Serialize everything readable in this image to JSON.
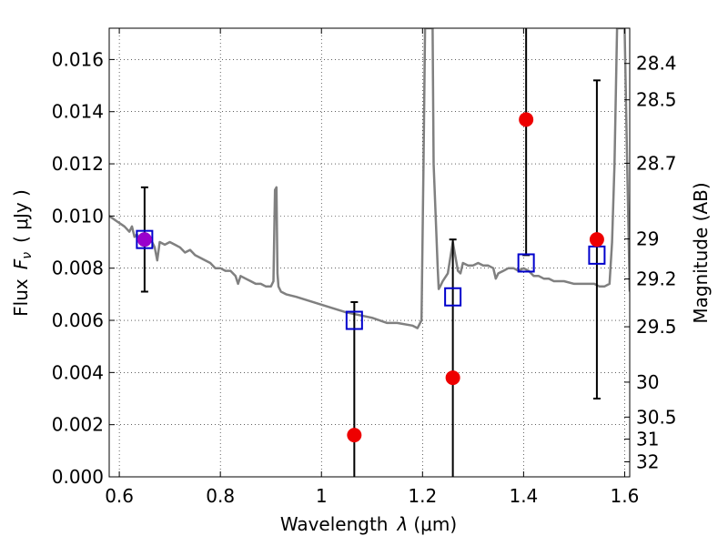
{
  "chart_data": {
    "type": "scatter",
    "title": "",
    "xlabel_text": "Wavelength",
    "xlabel_symbol": "λ",
    "xlabel_unit": "(μm)",
    "ylabel_text": "Flux",
    "ylabel_symbol": "F",
    "ylabel_subscript": "ν",
    "ylabel_unit": "( μJy )",
    "y2label": "Magnitude (AB)",
    "xlim": [
      0.58,
      1.61
    ],
    "ylim": [
      0.0,
      0.0172
    ],
    "grid": true,
    "x_ticks": [
      0.6,
      0.8,
      1.0,
      1.2,
      1.4,
      1.6
    ],
    "x_tick_labels": [
      "0.6",
      "0.8",
      "1",
      "1.2",
      "1.4",
      "1.6"
    ],
    "y_ticks": [
      0.0,
      0.002,
      0.004,
      0.006,
      0.008,
      0.01,
      0.012,
      0.014,
      0.016
    ],
    "y_tick_labels": [
      "0.000",
      "0.002",
      "0.004",
      "0.006",
      "0.008",
      "0.010",
      "0.012",
      "0.014",
      "0.016"
    ],
    "y2_ticks": [
      28.4,
      28.5,
      28.7,
      29,
      29.2,
      29.5,
      30,
      30.5,
      31,
      32
    ],
    "y2_tick_labels": [
      "28.4",
      "28.5",
      "28.7",
      "29",
      "29.2",
      "29.5",
      "30",
      "30.5",
      "31",
      "32"
    ],
    "model_spectrum": {
      "color": "#808080",
      "x": [
        0.58,
        0.595,
        0.61,
        0.62,
        0.625,
        0.63,
        0.635,
        0.64,
        0.645,
        0.65,
        0.655,
        0.66,
        0.665,
        0.67,
        0.675,
        0.68,
        0.69,
        0.7,
        0.71,
        0.72,
        0.73,
        0.74,
        0.75,
        0.76,
        0.77,
        0.78,
        0.79,
        0.8,
        0.81,
        0.82,
        0.83,
        0.835,
        0.84,
        0.85,
        0.86,
        0.87,
        0.88,
        0.89,
        0.9,
        0.905,
        0.908,
        0.911,
        0.913,
        0.915,
        0.92,
        0.93,
        0.95,
        1.0,
        1.05,
        1.1,
        1.13,
        1.15,
        1.18,
        1.19,
        1.198,
        1.202,
        1.205,
        1.21,
        1.215,
        1.22,
        1.222,
        1.23,
        1.232,
        1.235,
        1.24,
        1.25,
        1.26,
        1.27,
        1.275,
        1.28,
        1.29,
        1.3,
        1.31,
        1.32,
        1.33,
        1.34,
        1.345,
        1.35,
        1.36,
        1.37,
        1.38,
        1.39,
        1.4,
        1.41,
        1.42,
        1.43,
        1.44,
        1.45,
        1.46,
        1.48,
        1.5,
        1.52,
        1.54,
        1.55,
        1.56,
        1.57,
        1.575,
        1.58,
        1.585,
        1.59,
        1.595,
        1.6,
        1.605,
        1.61
      ],
      "y": [
        0.01,
        0.0098,
        0.0096,
        0.0094,
        0.0096,
        0.0092,
        0.0093,
        0.009,
        0.0092,
        0.0091,
        0.0089,
        0.0092,
        0.009,
        0.0088,
        0.0083,
        0.009,
        0.0089,
        0.009,
        0.0089,
        0.0088,
        0.0086,
        0.0087,
        0.0085,
        0.0084,
        0.0083,
        0.0082,
        0.008,
        0.008,
        0.0079,
        0.0079,
        0.0077,
        0.0074,
        0.0077,
        0.0076,
        0.0075,
        0.0074,
        0.0074,
        0.0073,
        0.0073,
        0.0075,
        0.011,
        0.0111,
        0.0078,
        0.0073,
        0.0071,
        0.007,
        0.0069,
        0.0066,
        0.0063,
        0.0061,
        0.0059,
        0.0059,
        0.0058,
        0.0057,
        0.006,
        0.012,
        0.0172,
        0.0172,
        0.0172,
        0.0172,
        0.012,
        0.008,
        0.0072,
        0.0073,
        0.0075,
        0.0078,
        0.009,
        0.0079,
        0.0078,
        0.0082,
        0.0081,
        0.0081,
        0.0082,
        0.0081,
        0.0081,
        0.008,
        0.0076,
        0.0078,
        0.0079,
        0.008,
        0.008,
        0.0079,
        0.008,
        0.0079,
        0.0077,
        0.0077,
        0.0076,
        0.0076,
        0.0075,
        0.0075,
        0.0074,
        0.0074,
        0.0074,
        0.0073,
        0.0073,
        0.0074,
        0.009,
        0.012,
        0.0172,
        0.0172,
        0.0172,
        0.0172,
        0.012,
        0.0071
      ]
    },
    "series": [
      {
        "marker": "open-square",
        "color": "#0000cc",
        "x": [
          0.65,
          1.065,
          1.26,
          1.405,
          1.545
        ],
        "y": [
          0.0091,
          0.006,
          0.0069,
          0.0082,
          0.0085
        ]
      },
      {
        "marker": "filled-circle",
        "color": "#ee0000",
        "x": [
          0.65,
          1.065,
          1.26,
          1.405,
          1.545
        ],
        "y": [
          0.0091,
          0.0016,
          0.0038,
          0.0137,
          0.0091
        ],
        "yerr_low": [
          0.0071,
          0.0,
          0.0,
          0.0085,
          0.003
        ],
        "yerr_high": [
          0.0111,
          0.0067,
          0.0091,
          0.0172,
          0.0152
        ]
      }
    ],
    "overlap_marker": {
      "x": 0.65,
      "y": 0.0091,
      "color": "#9900cc"
    }
  }
}
